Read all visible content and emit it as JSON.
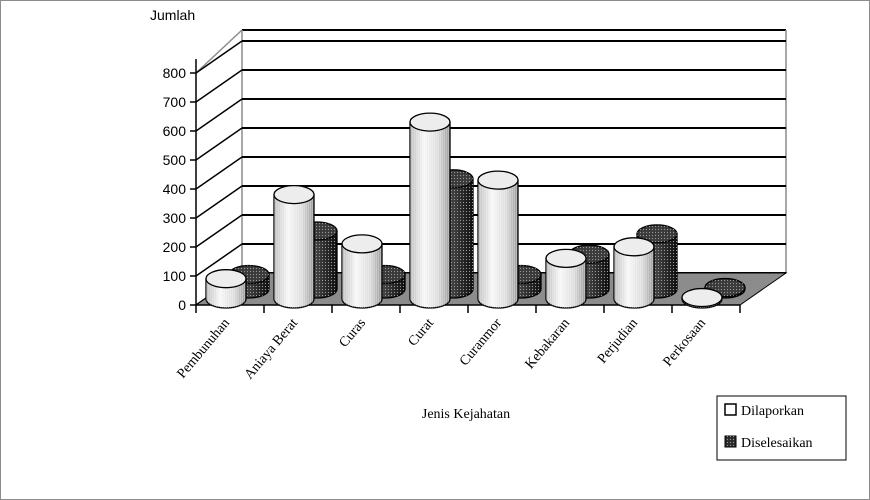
{
  "chart_data": {
    "type": "bar",
    "title": "",
    "ylabel": "Jumlah",
    "xlabel": "Jenis Kejahatan",
    "ylim": [
      0,
      800
    ],
    "yticks": [
      0,
      100,
      200,
      300,
      400,
      500,
      600,
      700,
      800
    ],
    "grid": true,
    "legend_position": "bottom-right",
    "categories": [
      "Pembunuhan",
      "Aniaya Berat",
      "Curas",
      "Curat",
      "Curanmor",
      "Kebakaran",
      "Perjudian",
      "Perkosaan"
    ],
    "series": [
      {
        "name": "Dilaporkan",
        "values": [
          70,
          360,
          190,
          610,
          410,
          140,
          180,
          5
        ],
        "color": "#e6e6e6"
      },
      {
        "name": "Diselesaikan",
        "values": [
          50,
          200,
          50,
          380,
          50,
          120,
          190,
          5
        ],
        "color": "#2a2a2a"
      }
    ]
  },
  "colors": {
    "floor": "#8c8c8c",
    "wall_grid": "#000000",
    "frame": "#8c8c8c"
  }
}
